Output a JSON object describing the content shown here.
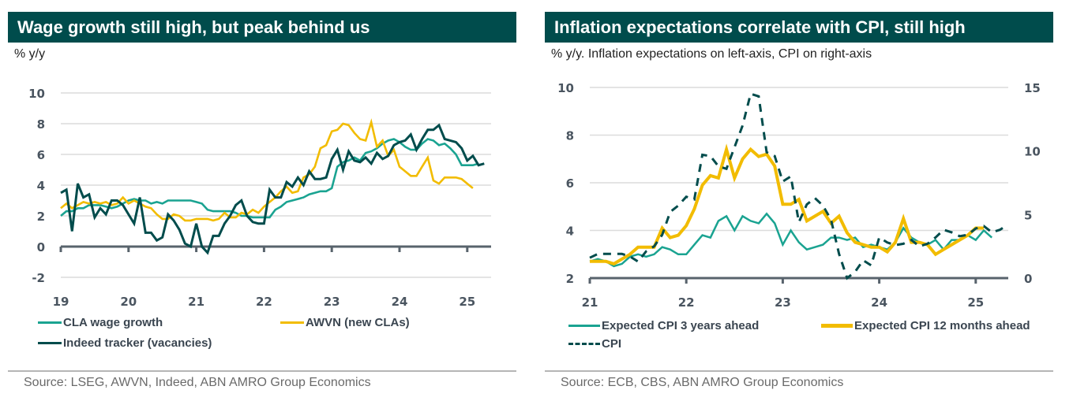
{
  "panels": [
    {
      "title": "Wage growth still high, but peak behind us",
      "subtitle": "% y/y",
      "source": "Source: LSEG, AWVN, Indeed, ABN AMRO Group Economics"
    },
    {
      "title": "Inflation expectations correlate with CPI, still high",
      "subtitle": "% y/y. Inflation expectations on left-axis, CPI on right-axis",
      "source": "Source:  ECB, CBS, ABN AMRO Group Economics"
    }
  ],
  "chart_data": [
    {
      "type": "line",
      "title": "Wage growth still high, but peak behind us",
      "ylabel": "% y/y",
      "xlabel": "",
      "x_start": 2019.0,
      "x_step_months": 1,
      "xlim": [
        2019.0,
        2025.35
      ],
      "ylim": [
        -2,
        10
      ],
      "yticks": [
        -2,
        0,
        2,
        4,
        6,
        8,
        10
      ],
      "xticks": [
        2019,
        2020,
        2021,
        2022,
        2023,
        2024,
        2025
      ],
      "xtick_labels": [
        "19",
        "20",
        "21",
        "22",
        "23",
        "24",
        "25"
      ],
      "grid": true,
      "legend_position": "bottom",
      "series": [
        {
          "name": "CLA wage growth",
          "color": "#1aa391",
          "style": "solid",
          "values": [
            2.0,
            2.3,
            2.3,
            2.5,
            2.5,
            2.7,
            2.7,
            2.7,
            2.6,
            2.5,
            2.6,
            2.8,
            3.0,
            3.1,
            3.0,
            3.0,
            2.8,
            2.9,
            2.8,
            3.0,
            3.0,
            3.0,
            3.0,
            3.0,
            2.9,
            2.8,
            2.4,
            2.3,
            2.3,
            2.3,
            2.3,
            2.2,
            2.0,
            2.0,
            1.9,
            1.9,
            1.9,
            1.9,
            2.4,
            2.6,
            2.9,
            3.0,
            3.1,
            3.2,
            3.4,
            3.5,
            3.6,
            3.6,
            3.8,
            5.2,
            5.5,
            5.6,
            5.8,
            5.6,
            6.1,
            6.2,
            6.4,
            6.7,
            6.9,
            7.0,
            6.8,
            6.5,
            6.3,
            6.3,
            6.7,
            7.0,
            6.9,
            6.6,
            6.7,
            6.4,
            6.0,
            5.3,
            5.3,
            5.3,
            5.4
          ]
        },
        {
          "name": "AWVN (new CLAs)",
          "color": "#f2bc00",
          "style": "solid",
          "values": [
            2.5,
            2.8,
            2.5,
            2.7,
            2.9,
            2.8,
            2.9,
            2.8,
            2.9,
            2.7,
            2.8,
            3.2,
            2.8,
            3.0,
            2.8,
            2.6,
            2.5,
            2.1,
            1.8,
            1.8,
            2.1,
            2.0,
            1.7,
            1.7,
            1.8,
            1.8,
            1.8,
            1.7,
            1.8,
            2.2,
            1.9,
            1.9,
            2.2,
            2.1,
            2.4,
            2.2,
            2.6,
            2.9,
            3.2,
            3.6,
            3.9,
            3.5,
            3.6,
            4.5,
            4.7,
            5.2,
            6.4,
            6.6,
            7.5,
            7.6,
            8.0,
            7.9,
            7.4,
            7.0,
            6.9,
            8.1,
            6.5,
            6.9,
            5.9,
            6.3,
            5.2,
            4.9,
            4.6,
            4.6,
            5.2,
            5.8,
            4.3,
            4.1,
            4.5,
            4.5,
            4.5,
            4.4,
            4.1,
            3.8
          ]
        },
        {
          "name": "Indeed tracker (vacancies)",
          "color": "#004c4c",
          "style": "solid",
          "values": [
            3.5,
            3.7,
            1.0,
            4.1,
            3.2,
            3.4,
            1.9,
            2.5,
            2.1,
            3.0,
            3.0,
            2.7,
            2.1,
            1.5,
            3.2,
            0.9,
            0.9,
            0.4,
            0.6,
            2.1,
            1.7,
            1.1,
            0.2,
            0.0,
            1.5,
            0.0,
            -0.4,
            0.7,
            0.7,
            1.5,
            2.0,
            2.7,
            3.0,
            2.0,
            1.6,
            1.5,
            1.5,
            3.7,
            3.2,
            3.2,
            4.2,
            3.9,
            4.5,
            4.0,
            4.9,
            4.4,
            4.4,
            4.5,
            5.7,
            6.3,
            5.0,
            6.2,
            5.6,
            5.5,
            5.8,
            5.4,
            6.1,
            5.7,
            5.9,
            6.6,
            6.8,
            6.9,
            7.3,
            6.3,
            7.0,
            7.6,
            7.6,
            7.9,
            7.0,
            6.9,
            6.8,
            6.4,
            5.6,
            5.9,
            5.3,
            5.4
          ]
        }
      ]
    },
    {
      "type": "line",
      "title": "Inflation expectations correlate with CPI, still high",
      "ylabel": "% y/y. Inflation expectations on left-axis, CPI on right-axis",
      "xlabel": "",
      "x_start": 2021.0,
      "x_step_months": 1,
      "xlim": [
        2021.0,
        2025.35
      ],
      "ylim_left": [
        2,
        10
      ],
      "ylim_right": [
        0,
        15
      ],
      "yticks_left": [
        2,
        4,
        6,
        8,
        10
      ],
      "yticks_right": [
        0,
        5,
        10,
        15
      ],
      "xticks": [
        2021,
        2022,
        2023,
        2024,
        2025
      ],
      "xtick_labels": [
        "21",
        "22",
        "23",
        "24",
        "25"
      ],
      "grid": true,
      "legend_position": "bottom",
      "series": [
        {
          "name": "Expected CPI 3 years ahead",
          "color": "#1aa391",
          "style": "solid",
          "axis": "left",
          "values": [
            2.7,
            2.8,
            2.7,
            2.5,
            2.6,
            2.9,
            3.0,
            2.9,
            3.0,
            3.3,
            3.2,
            3.0,
            3.0,
            3.4,
            3.8,
            3.7,
            4.4,
            4.6,
            4.0,
            4.6,
            4.4,
            4.3,
            4.7,
            4.3,
            3.4,
            4.0,
            3.5,
            3.2,
            3.3,
            3.4,
            3.7,
            3.7,
            3.6,
            3.7,
            3.3,
            3.4,
            3.3,
            3.2,
            3.5,
            4.1,
            3.7,
            3.5,
            3.4,
            3.6,
            3.2,
            3.6,
            3.6,
            3.8,
            3.6,
            4.0,
            3.7
          ]
        },
        {
          "name": "Expected CPI 12 months ahead",
          "color": "#f2bc00",
          "style": "solid",
          "axis": "left",
          "values": [
            2.7,
            2.7,
            2.7,
            2.6,
            2.8,
            3.0,
            3.3,
            3.3,
            3.3,
            4.1,
            3.7,
            3.8,
            4.2,
            4.9,
            5.9,
            6.3,
            6.2,
            7.4,
            6.2,
            7.0,
            7.4,
            7.1,
            7.2,
            6.7,
            5.1,
            5.1,
            5.3,
            4.4,
            4.6,
            4.8,
            4.3,
            4.6,
            3.9,
            3.5,
            3.4,
            3.3,
            3.3,
            3.1,
            3.5,
            4.5,
            3.5,
            3.5,
            3.4,
            3.0,
            3.2,
            3.4,
            3.6,
            3.8,
            4.1,
            4.1
          ]
        },
        {
          "name": "CPI",
          "color": "#004c4c",
          "style": "dashed",
          "axis": "right",
          "values": [
            1.6,
            1.9,
            1.9,
            1.9,
            1.9,
            1.7,
            1.3,
            2.1,
            2.5,
            3.4,
            5.2,
            5.7,
            6.4,
            6.2,
            9.7,
            9.6,
            8.8,
            8.6,
            10.3,
            12.0,
            14.5,
            14.3,
            9.9,
            9.6,
            7.6,
            8.0,
            4.4,
            5.8,
            6.3,
            5.7,
            4.6,
            1.9,
            0.0,
            0.5,
            1.4,
            1.0,
            3.2,
            2.8,
            2.6,
            2.7,
            3.0,
            2.5,
            2.7,
            3.2,
            3.8,
            3.6,
            3.3,
            3.4,
            3.9,
            4.1,
            3.6,
            3.8,
            4.2
          ]
        }
      ]
    }
  ]
}
